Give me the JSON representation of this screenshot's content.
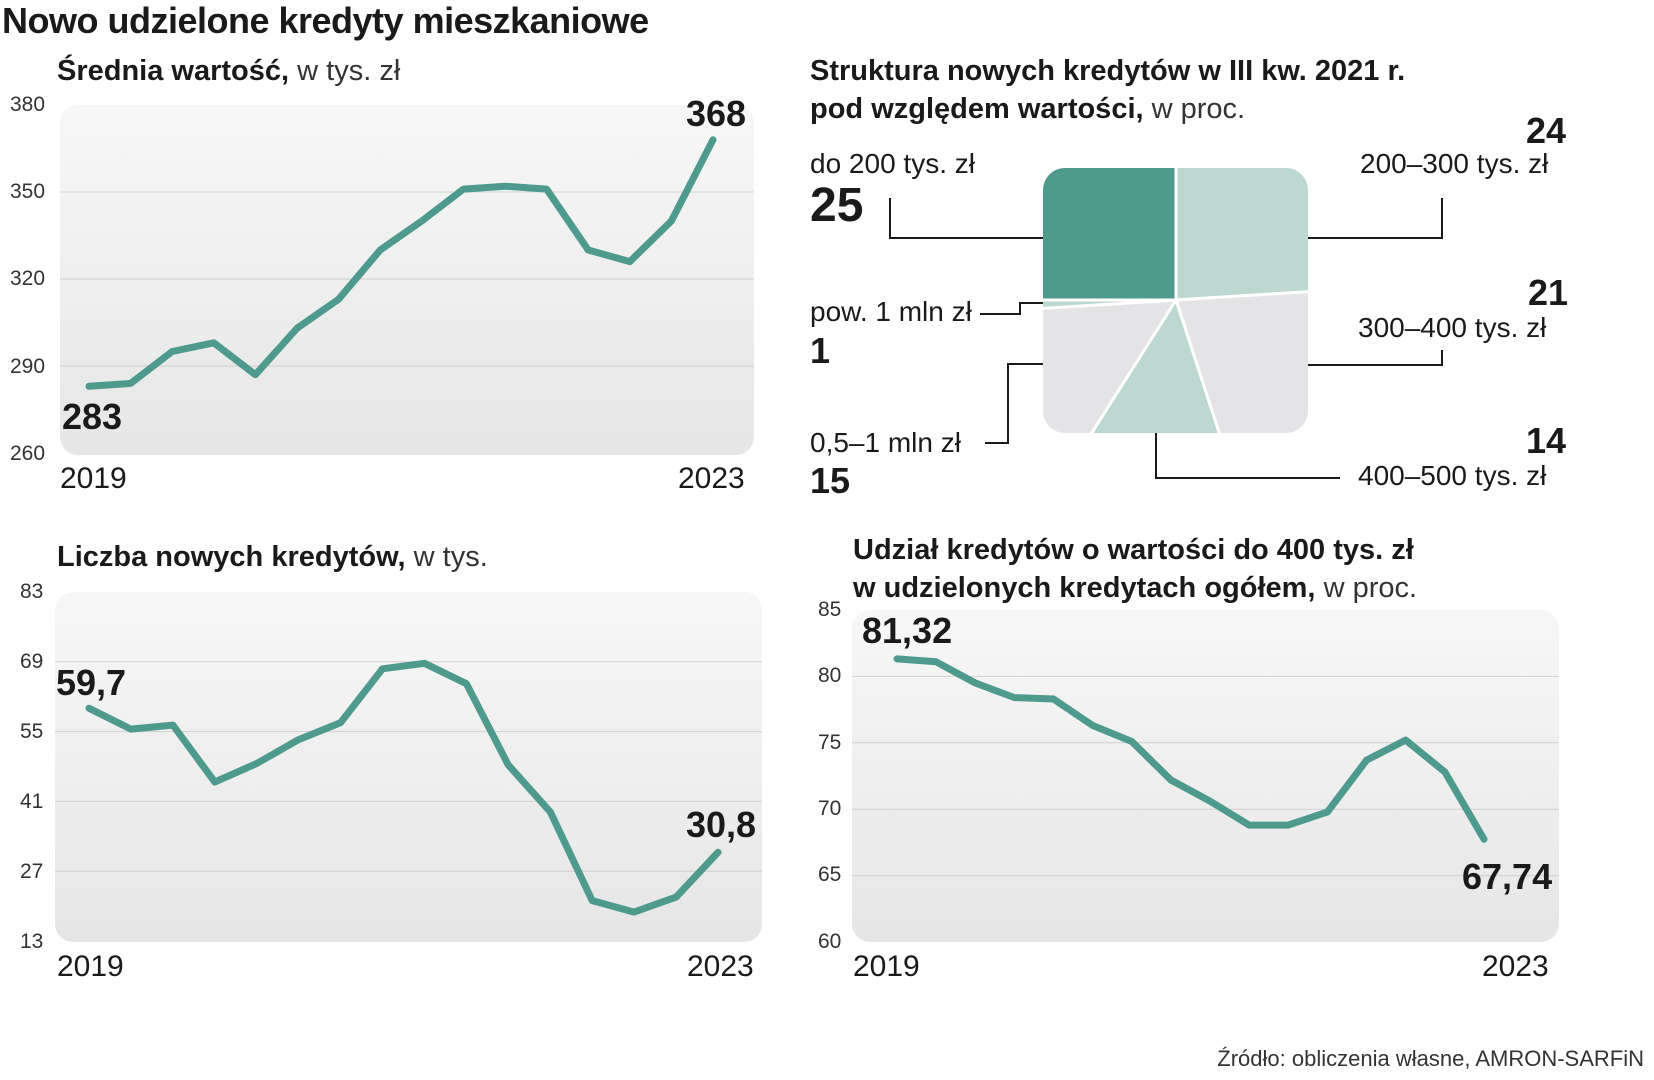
{
  "main_title": "Nowo udzielone kredyty mieszkaniowe",
  "source": "Źródło: obliczenia własne, AMRON-SARFiN",
  "colors": {
    "line": "#4e9a8c",
    "pie_dark": "#4e9a8c",
    "pie_light": "#bcd8d0",
    "pie_grey": "#e4e4e6",
    "panel": "#eeeeee"
  },
  "chart_data": [
    {
      "type": "line",
      "title": "Średnia wartość,",
      "unit": "w tys. zł",
      "yticks": [
        "380",
        "350",
        "320",
        "290",
        "260"
      ],
      "ylim": [
        260,
        380
      ],
      "x_start": "2019",
      "x_end": "2023",
      "values": [
        283,
        284,
        295,
        298,
        287,
        303,
        313,
        330,
        340,
        351,
        352,
        351,
        330,
        326,
        340,
        368
      ],
      "first_label": "283",
      "last_label": "368"
    },
    {
      "type": "pie",
      "title_line1": "Struktura nowych kredytów w III kw. 2021 r.",
      "title_line2": "pod względem wartości,",
      "unit": "w proc.",
      "slices": [
        {
          "label": "do 200 tys. zł",
          "value": "25",
          "color": "#4e9a8c"
        },
        {
          "label": "200–300 tys. zł",
          "value": "24",
          "color": "#bcd8d0"
        },
        {
          "label": "300–400 tys. zł",
          "value": "21",
          "color": "#e4e4e6"
        },
        {
          "label": "400–500 tys. zł",
          "value": "14",
          "color": "#bcd8d0"
        },
        {
          "label": "0,5–1 mln zł",
          "value": "15",
          "color": "#e4e4e6"
        },
        {
          "label": "pow. 1 mln zł",
          "value": "1",
          "color": "#bcd8d0"
        }
      ]
    },
    {
      "type": "line",
      "title": "Liczba nowych kredytów,",
      "unit": "w tys.",
      "yticks": [
        "83",
        "69",
        "55",
        "41",
        "27",
        "13"
      ],
      "ylim": [
        13,
        83
      ],
      "x_start": "2019",
      "x_end": "2023",
      "values": [
        59.7,
        55.5,
        56.3,
        44.9,
        48.6,
        53.4,
        56.8,
        67.6,
        68.7,
        64.6,
        48.3,
        38.9,
        21.1,
        18.8,
        21.8,
        30.8
      ],
      "first_label": "59,7",
      "last_label": "30,8"
    },
    {
      "type": "line",
      "title_line1": "Udział kredytów o wartości do 400 tys. zł",
      "title_line2": "w udzielonych kredytach ogółem,",
      "unit": "w proc.",
      "yticks": [
        "85",
        "80",
        "75",
        "70",
        "65",
        "60"
      ],
      "ylim": [
        60,
        85
      ],
      "x_start": "2019",
      "x_end": "2023",
      "values": [
        81.32,
        81.1,
        79.5,
        78.4,
        78.3,
        76.3,
        75.1,
        72.2,
        70.6,
        68.8,
        68.8,
        69.8,
        73.7,
        75.2,
        72.8,
        67.74
      ],
      "first_label": "81,32",
      "last_label": "67,74"
    }
  ]
}
